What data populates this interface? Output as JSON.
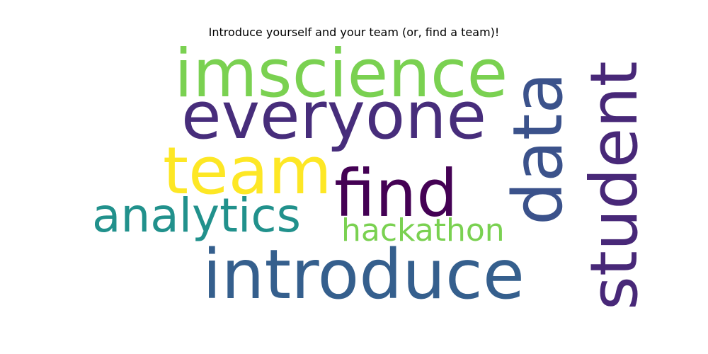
{
  "title": "Introduce yourself and your team (or, find a team)!",
  "words": [
    {
      "key": "imscience",
      "text": "imscience",
      "color": "#7ad151",
      "orientation": "horizontal"
    },
    {
      "key": "everyone",
      "text": "everyone",
      "color": "#472d7b",
      "orientation": "horizontal"
    },
    {
      "key": "team",
      "text": "team",
      "color": "#fde725",
      "orientation": "horizontal"
    },
    {
      "key": "find",
      "text": "find",
      "color": "#440154",
      "orientation": "horizontal"
    },
    {
      "key": "analytics",
      "text": "analytics",
      "color": "#21918c",
      "orientation": "horizontal"
    },
    {
      "key": "hackathon",
      "text": "hackathon",
      "color": "#7ad151",
      "orientation": "horizontal"
    },
    {
      "key": "introduce",
      "text": "introduce",
      "color": "#355f8d",
      "orientation": "horizontal"
    },
    {
      "key": "data",
      "text": "data",
      "color": "#3b528b",
      "orientation": "vertical"
    },
    {
      "key": "student",
      "text": "student",
      "color": "#482878",
      "orientation": "vertical"
    }
  ]
}
